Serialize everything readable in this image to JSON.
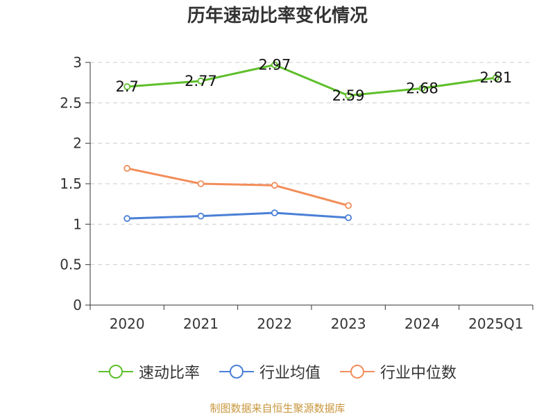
{
  "chart_data": {
    "type": "line",
    "title": "历年速动比率变化情况",
    "categories": [
      "2020",
      "2021",
      "2022",
      "2023",
      "2024",
      "2025Q1"
    ],
    "ylim": [
      0,
      3
    ],
    "yticks": [
      "0",
      "0.5",
      "1",
      "1.5",
      "2",
      "2.5",
      "3"
    ],
    "grid": true,
    "legend_position": "bottom",
    "series": [
      {
        "name": "速动比率",
        "color": "#5ebf2a",
        "values": [
          2.7,
          2.77,
          2.97,
          2.59,
          2.68,
          2.81
        ],
        "labels": [
          "2.7",
          "2.77",
          "2.97",
          "2.59",
          "2.68",
          "2.81"
        ]
      },
      {
        "name": "行业均值",
        "color": "#4a7fd6",
        "values": [
          1.07,
          1.1,
          1.14,
          1.08,
          null,
          null
        ]
      },
      {
        "name": "行业中位数",
        "color": "#f28d5a",
        "values": [
          1.69,
          1.5,
          1.48,
          1.23,
          null,
          null
        ]
      }
    ]
  },
  "footer": {
    "source": "制图数据来自恒生聚源数据库"
  }
}
